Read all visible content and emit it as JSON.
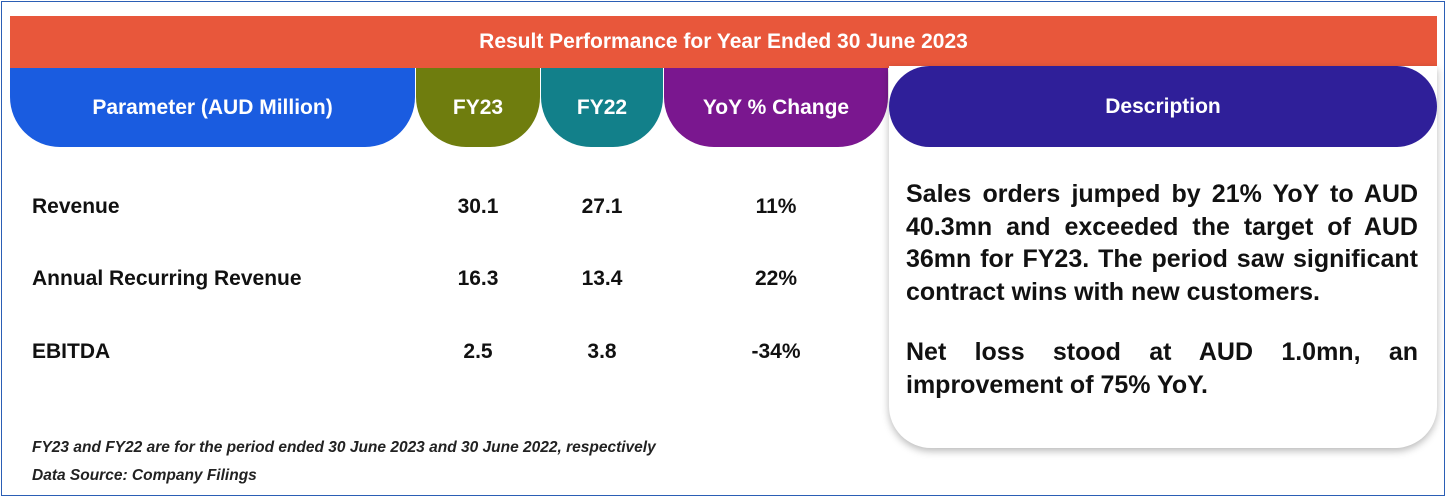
{
  "title": "Result Performance for Year Ended 30 June 2023",
  "headers": {
    "parameter": "Parameter (AUD Million)",
    "fy23": "FY23",
    "fy22": "FY22",
    "yoy": "YoY % Change",
    "description": "Description"
  },
  "rows": [
    {
      "parameter": "Revenue",
      "fy23": "30.1",
      "fy22": "27.1",
      "yoy": "11%"
    },
    {
      "parameter": "Annual Recurring Revenue",
      "fy23": "16.3",
      "fy22": "13.4",
      "yoy": "22%"
    },
    {
      "parameter": "EBITDA",
      "fy23": "2.5",
      "fy22": "3.8",
      "yoy": "-34%"
    }
  ],
  "description": {
    "para1": "Sales orders jumped by 21% YoY to AUD 40.3mn and exceeded the target of AUD 36mn for FY23. The period saw significant contract wins with new customers.",
    "para2": "Net loss stood at AUD 1.0mn, an improvement of 75% YoY."
  },
  "footnotes": {
    "note": "FY23 and FY22 are for the period ended 30 June 2023 and 30 June 2022, respectively",
    "source": "Data Source: Company Filings"
  },
  "colors": {
    "title_bar": "#e8573b",
    "parameter_header": "#1a5ce0",
    "fy23_header": "#6f7d0e",
    "fy22_header": "#12808a",
    "yoy_header": "#7a178f",
    "description_header": "#2f1f99",
    "frame_border": "#2b5eb5"
  }
}
